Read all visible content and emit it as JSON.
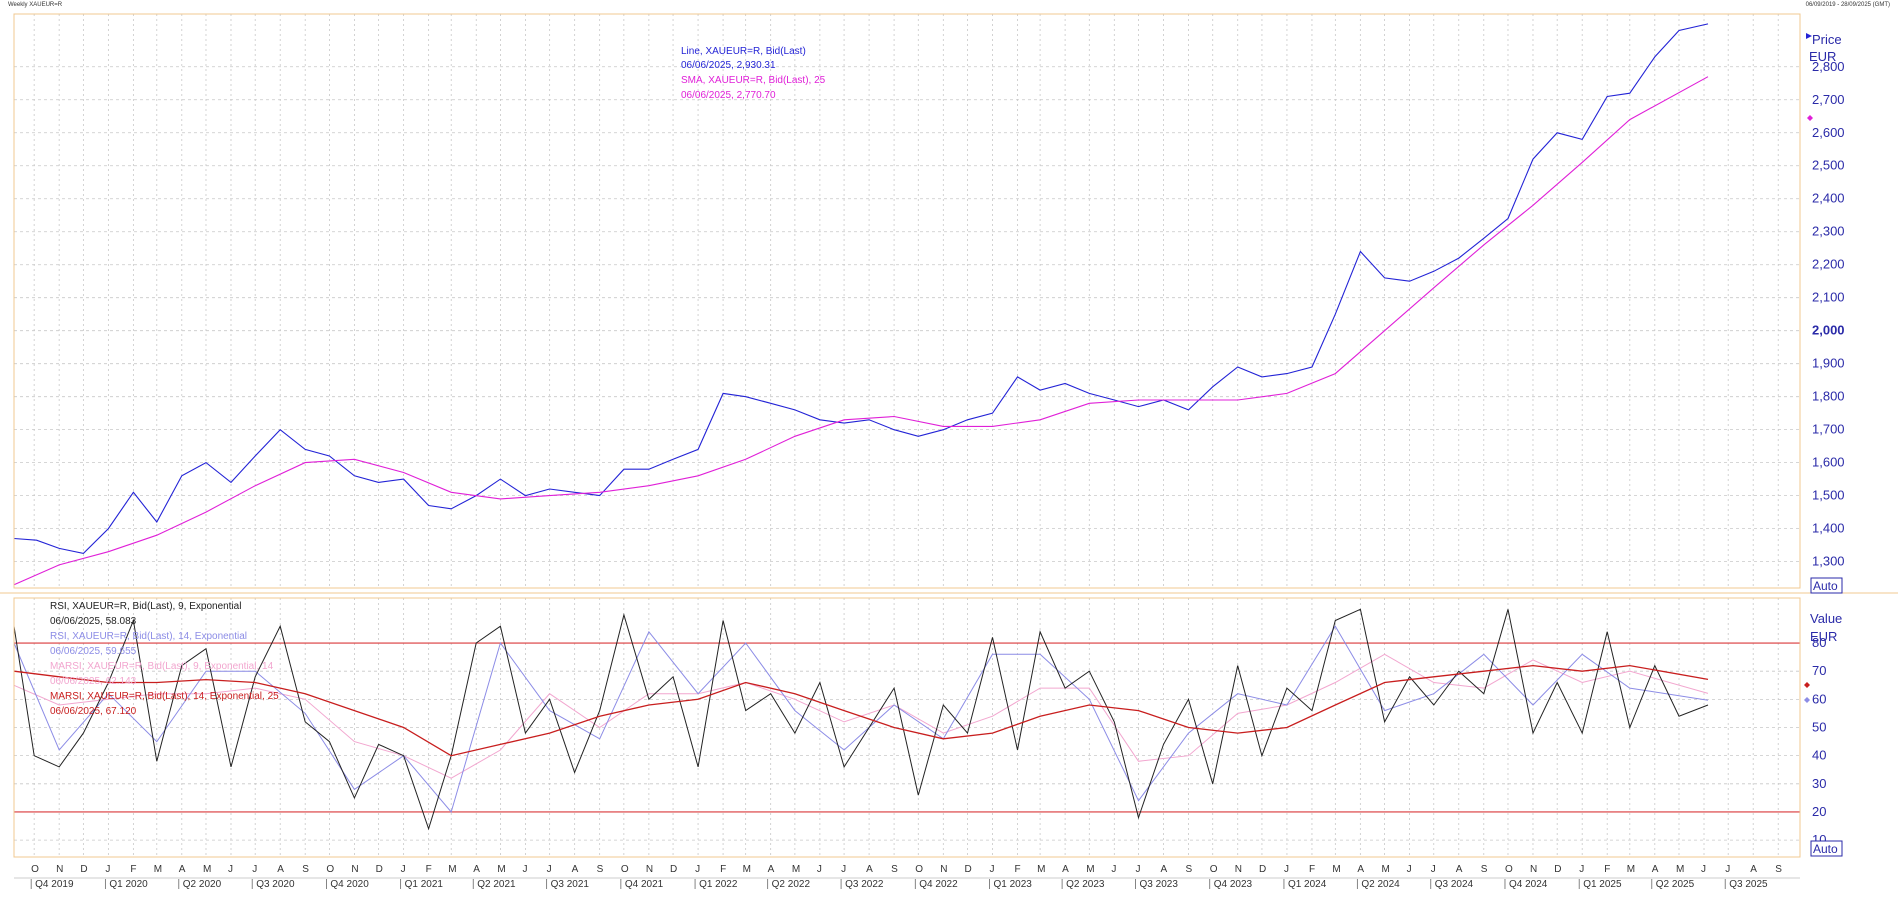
{
  "header": {
    "left": "Weekly XAUEUR=R",
    "right": "06/09/2019 - 28/09/2025 (GMT)"
  },
  "colors": {
    "price_line": "#2323d6",
    "sma_line": "#e020d8",
    "rsi9": "#222222",
    "rsi14": "#8c8ce6",
    "marsi9": "#f2a6cf",
    "marsi14": "#c81e1e",
    "level_line": "#d9383a",
    "grid": "#c8c8c8",
    "border": "#f0c890"
  },
  "price_panel": {
    "axis_title": "Price",
    "axis_unit": "EUR",
    "auto_label": "Auto",
    "legend": [
      {
        "text": "Line, XAUEUR=R, Bid(Last)",
        "color": "#2323d6"
      },
      {
        "text": "06/06/2025, 2,930.31",
        "color": "#2323d6"
      },
      {
        "text": "SMA, XAUEUR=R, Bid(Last),  25",
        "color": "#e020d8"
      },
      {
        "text": "06/06/2025, 2,770.70",
        "color": "#e020d8"
      }
    ]
  },
  "rsi_panel": {
    "axis_title": "Value",
    "axis_unit": "EUR",
    "auto_label": "Auto",
    "legend": [
      {
        "text": "RSI, XAUEUR=R, Bid(Last),  9, Exponential",
        "color": "#222222"
      },
      {
        "text": "06/06/2025, 58.083",
        "color": "#222222"
      },
      {
        "text": "RSI, XAUEUR=R, Bid(Last),  14, Exponential",
        "color": "#8c8ce6"
      },
      {
        "text": "06/06/2025, 59.655",
        "color": "#8c8ce6"
      },
      {
        "text": "MARSI, XAUEUR=R, Bid(Last),  9, Exponential, 14",
        "color": "#f2a6cf"
      },
      {
        "text": "06/06/2025, 62.143",
        "color": "#f2a6cf"
      },
      {
        "text": "MARSI, XAUEUR=R, Bid(Last),  14, Exponential, 25",
        "color": "#c81e1e"
      },
      {
        "text": "06/06/2025, 67.120",
        "color": "#c81e1e"
      }
    ]
  },
  "chart_data": [
    {
      "type": "line",
      "ylabel": "Price",
      "unit": "EUR",
      "ylim": [
        1220,
        2960
      ],
      "yticks": [
        1300,
        1400,
        1500,
        1600,
        1700,
        1800,
        1900,
        2000,
        2100,
        2200,
        2300,
        2400,
        2500,
        2600,
        2700,
        2800
      ],
      "ytick_labels": [
        "1,300",
        "1,400",
        "1,500",
        "1,600",
        "1,700",
        "1,800",
        "1,900",
        "2,000",
        "2,100",
        "2,200",
        "2,300",
        "2,400",
        "2,500",
        "2,600",
        "2,700",
        "2,800"
      ],
      "grid": true,
      "legend_position": "top-center",
      "x_range": [
        "2019-09-06",
        "2025-09-28"
      ],
      "series": [
        {
          "name": "Line, XAUEUR=R, Bid(Last)",
          "x": [
            "2019-09-06",
            "2019-10-04",
            "2019-11-01",
            "2019-12-01",
            "2020-01-01",
            "2020-02-01",
            "2020-03-01",
            "2020-04-01",
            "2020-05-01",
            "2020-06-01",
            "2020-07-01",
            "2020-08-01",
            "2020-09-01",
            "2020-10-01",
            "2020-11-01",
            "2020-12-01",
            "2021-01-01",
            "2021-02-01",
            "2021-03-01",
            "2021-04-01",
            "2021-05-01",
            "2021-06-01",
            "2021-07-01",
            "2021-08-01",
            "2021-09-01",
            "2021-10-01",
            "2021-11-01",
            "2021-12-01",
            "2022-01-01",
            "2022-02-01",
            "2022-03-01",
            "2022-04-01",
            "2022-05-01",
            "2022-06-01",
            "2022-07-01",
            "2022-08-01",
            "2022-09-01",
            "2022-10-01",
            "2022-11-01",
            "2022-12-01",
            "2023-01-01",
            "2023-02-01",
            "2023-03-01",
            "2023-04-01",
            "2023-05-01",
            "2023-06-01",
            "2023-07-01",
            "2023-08-01",
            "2023-09-01",
            "2023-10-01",
            "2023-11-01",
            "2023-12-01",
            "2024-01-01",
            "2024-02-01",
            "2024-03-01",
            "2024-04-01",
            "2024-05-01",
            "2024-06-01",
            "2024-07-01",
            "2024-08-01",
            "2024-09-01",
            "2024-10-01",
            "2024-11-01",
            "2024-12-01",
            "2025-01-01",
            "2025-02-01",
            "2025-03-01",
            "2025-04-01",
            "2025-05-01",
            "2025-06-06"
          ],
          "values": [
            1370,
            1365,
            1340,
            1325,
            1400,
            1510,
            1420,
            1560,
            1600,
            1540,
            1620,
            1700,
            1640,
            1620,
            1560,
            1540,
            1550,
            1470,
            1460,
            1500,
            1550,
            1500,
            1520,
            1510,
            1500,
            1580,
            1580,
            1610,
            1640,
            1810,
            1800,
            1780,
            1760,
            1730,
            1720,
            1730,
            1700,
            1680,
            1700,
            1730,
            1750,
            1860,
            1820,
            1840,
            1810,
            1790,
            1770,
            1790,
            1760,
            1830,
            1890,
            1860,
            1870,
            1890,
            2050,
            2240,
            2160,
            2150,
            2180,
            2220,
            2280,
            2340,
            2520,
            2600,
            2580,
            2710,
            2720,
            2830,
            2910,
            2930
          ]
        },
        {
          "name": "SMA, XAUEUR=R, Bid(Last),  25",
          "x": [
            "2019-09-06",
            "2019-11-01",
            "2020-01-01",
            "2020-03-01",
            "2020-05-01",
            "2020-07-01",
            "2020-09-01",
            "2020-11-01",
            "2021-01-01",
            "2021-03-01",
            "2021-05-01",
            "2021-07-01",
            "2021-09-01",
            "2021-11-01",
            "2022-01-01",
            "2022-03-01",
            "2022-05-01",
            "2022-07-01",
            "2022-09-01",
            "2022-11-01",
            "2023-01-01",
            "2023-03-01",
            "2023-05-01",
            "2023-07-01",
            "2023-09-01",
            "2023-11-01",
            "2024-01-01",
            "2024-03-01",
            "2024-05-01",
            "2024-07-01",
            "2024-09-01",
            "2024-11-01",
            "2025-01-01",
            "2025-03-01",
            "2025-06-06"
          ],
          "values": [
            1230,
            1290,
            1330,
            1380,
            1450,
            1530,
            1600,
            1610,
            1570,
            1510,
            1490,
            1500,
            1510,
            1530,
            1560,
            1610,
            1680,
            1730,
            1740,
            1710,
            1710,
            1730,
            1780,
            1790,
            1790,
            1790,
            1810,
            1870,
            2000,
            2130,
            2260,
            2380,
            2510,
            2640,
            2770
          ]
        }
      ]
    },
    {
      "type": "line",
      "ylabel": "Value",
      "unit": "EUR",
      "ylim": [
        4,
        96
      ],
      "yticks": [
        10,
        20,
        30,
        40,
        50,
        60,
        70,
        80
      ],
      "ytick_labels": [
        "10",
        "20",
        "30",
        "40",
        "50",
        "60",
        "70",
        "80"
      ],
      "reference_lines": [
        20,
        80
      ],
      "grid": true,
      "legend_position": "top-left",
      "x_range": [
        "2019-09-06",
        "2025-09-28"
      ],
      "x_axis_months": [
        "O",
        "N",
        "D",
        "J",
        "F",
        "M",
        "A",
        "M",
        "J",
        "J",
        "A",
        "S",
        "O",
        "N",
        "D",
        "J",
        "F",
        "M",
        "A",
        "M",
        "J",
        "J",
        "A",
        "S",
        "O",
        "N",
        "D",
        "J",
        "F",
        "M",
        "A",
        "M",
        "J",
        "J",
        "A",
        "S",
        "O",
        "N",
        "D",
        "J",
        "F",
        "M",
        "A",
        "M",
        "J",
        "J",
        "A",
        "S",
        "O",
        "N",
        "D",
        "J",
        "F",
        "M",
        "A",
        "M",
        "J",
        "J",
        "A",
        "S",
        "O",
        "N",
        "D",
        "J",
        "F",
        "M",
        "A",
        "M",
        "J",
        "J",
        "A",
        "S"
      ],
      "x_axis_quarters": [
        "Q4 2019",
        "Q1 2020",
        "Q2 2020",
        "Q3 2020",
        "Q4 2020",
        "Q1 2021",
        "Q2 2021",
        "Q3 2021",
        "Q4 2021",
        "Q1 2022",
        "Q2 2022",
        "Q3 2022",
        "Q4 2022",
        "Q1 2023",
        "Q2 2023",
        "Q3 2023",
        "Q4 2023",
        "Q1 2024",
        "Q2 2024",
        "Q3 2024",
        "Q4 2024",
        "Q1 2025",
        "Q2 2025",
        "Q3 2025"
      ],
      "series": [
        {
          "name": "RSI, XAUEUR=R, Bid(Last),  9, Exponential",
          "x": [
            "2019-09-06",
            "2019-10-01",
            "2019-11-01",
            "2019-12-01",
            "2020-01-01",
            "2020-02-01",
            "2020-03-01",
            "2020-04-01",
            "2020-05-01",
            "2020-06-01",
            "2020-07-01",
            "2020-08-01",
            "2020-09-01",
            "2020-10-01",
            "2020-11-01",
            "2020-12-01",
            "2021-01-01",
            "2021-02-01",
            "2021-03-01",
            "2021-04-01",
            "2021-05-01",
            "2021-06-01",
            "2021-07-01",
            "2021-08-01",
            "2021-09-01",
            "2021-10-01",
            "2021-11-01",
            "2021-12-01",
            "2022-01-01",
            "2022-02-01",
            "2022-03-01",
            "2022-04-01",
            "2022-05-01",
            "2022-06-01",
            "2022-07-01",
            "2022-08-01",
            "2022-09-01",
            "2022-10-01",
            "2022-11-01",
            "2022-12-01",
            "2023-01-01",
            "2023-02-01",
            "2023-03-01",
            "2023-04-01",
            "2023-05-01",
            "2023-06-01",
            "2023-07-01",
            "2023-08-01",
            "2023-09-01",
            "2023-10-01",
            "2023-11-01",
            "2023-12-01",
            "2024-01-01",
            "2024-02-01",
            "2024-03-01",
            "2024-04-01",
            "2024-05-01",
            "2024-06-01",
            "2024-07-01",
            "2024-08-01",
            "2024-09-01",
            "2024-10-01",
            "2024-11-01",
            "2024-12-01",
            "2025-01-01",
            "2025-02-01",
            "2025-03-01",
            "2025-04-01",
            "2025-05-01",
            "2025-06-06"
          ],
          "values": [
            86,
            40,
            36,
            48,
            66,
            88,
            38,
            72,
            78,
            36,
            68,
            86,
            52,
            45,
            25,
            44,
            40,
            14,
            40,
            80,
            86,
            48,
            60,
            34,
            56,
            90,
            60,
            68,
            36,
            88,
            56,
            62,
            48,
            66,
            36,
            50,
            64,
            26,
            58,
            48,
            82,
            42,
            84,
            64,
            70,
            52,
            18,
            44,
            60,
            30,
            72,
            40,
            64,
            56,
            88,
            92,
            52,
            68,
            58,
            70,
            62,
            92,
            48,
            66,
            48,
            84,
            50,
            72,
            54,
            58
          ]
        },
        {
          "name": "RSI, XAUEUR=R, Bid(Last),  14, Exponential",
          "x": [
            "2019-09-06",
            "2019-11-01",
            "2020-01-01",
            "2020-03-01",
            "2020-05-01",
            "2020-07-01",
            "2020-09-01",
            "2020-11-01",
            "2021-01-01",
            "2021-03-01",
            "2021-05-01",
            "2021-07-01",
            "2021-09-01",
            "2021-11-01",
            "2022-01-01",
            "2022-03-01",
            "2022-05-01",
            "2022-07-01",
            "2022-09-01",
            "2022-11-01",
            "2023-01-01",
            "2023-03-01",
            "2023-05-01",
            "2023-07-01",
            "2023-09-01",
            "2023-11-01",
            "2024-01-01",
            "2024-03-01",
            "2024-05-01",
            "2024-07-01",
            "2024-09-01",
            "2024-11-01",
            "2025-01-01",
            "2025-03-01",
            "2025-06-06"
          ],
          "values": [
            80,
            42,
            62,
            45,
            70,
            70,
            55,
            28,
            40,
            20,
            80,
            56,
            46,
            84,
            62,
            80,
            56,
            42,
            58,
            46,
            76,
            76,
            60,
            24,
            48,
            62,
            58,
            86,
            56,
            62,
            76,
            58,
            76,
            64,
            59.7
          ]
        },
        {
          "name": "MARSI, XAUEUR=R, Bid(Last),  9, Exponential, 14",
          "x": [
            "2019-09-06",
            "2019-11-01",
            "2020-01-01",
            "2020-03-01",
            "2020-05-01",
            "2020-07-01",
            "2020-09-01",
            "2020-11-01",
            "2021-01-01",
            "2021-03-01",
            "2021-05-01",
            "2021-07-01",
            "2021-09-01",
            "2021-11-01",
            "2022-01-01",
            "2022-03-01",
            "2022-05-01",
            "2022-07-01",
            "2022-09-01",
            "2022-11-01",
            "2023-01-01",
            "2023-03-01",
            "2023-05-01",
            "2023-07-01",
            "2023-09-01",
            "2023-11-01",
            "2024-01-01",
            "2024-03-01",
            "2024-05-01",
            "2024-07-01",
            "2024-09-01",
            "2024-11-01",
            "2025-01-01",
            "2025-03-01",
            "2025-06-06"
          ],
          "values": [
            65,
            58,
            60,
            62,
            62,
            64,
            60,
            45,
            40,
            32,
            42,
            62,
            50,
            62,
            62,
            66,
            60,
            52,
            58,
            48,
            54,
            64,
            64,
            38,
            40,
            55,
            58,
            66,
            76,
            66,
            64,
            74,
            66,
            70,
            62.1
          ]
        },
        {
          "name": "MARSI, XAUEUR=R, Bid(Last),  14, Exponential, 25",
          "x": [
            "2019-09-06",
            "2019-11-01",
            "2020-01-01",
            "2020-03-01",
            "2020-05-01",
            "2020-07-01",
            "2020-09-01",
            "2020-11-01",
            "2021-01-01",
            "2021-03-01",
            "2021-05-01",
            "2021-07-01",
            "2021-09-01",
            "2021-11-01",
            "2022-01-01",
            "2022-03-01",
            "2022-05-01",
            "2022-07-01",
            "2022-09-01",
            "2022-11-01",
            "2023-01-01",
            "2023-03-01",
            "2023-05-01",
            "2023-07-01",
            "2023-09-01",
            "2023-11-01",
            "2024-01-01",
            "2024-03-01",
            "2024-05-01",
            "2024-07-01",
            "2024-09-01",
            "2024-11-01",
            "2025-01-01",
            "2025-03-01",
            "2025-06-06"
          ],
          "values": [
            70,
            68,
            66,
            66,
            67,
            66,
            62,
            56,
            50,
            40,
            44,
            48,
            54,
            58,
            60,
            66,
            62,
            56,
            50,
            46,
            48,
            54,
            58,
            56,
            50,
            48,
            50,
            58,
            66,
            68,
            70,
            72,
            70,
            72,
            67.1
          ]
        }
      ]
    }
  ]
}
